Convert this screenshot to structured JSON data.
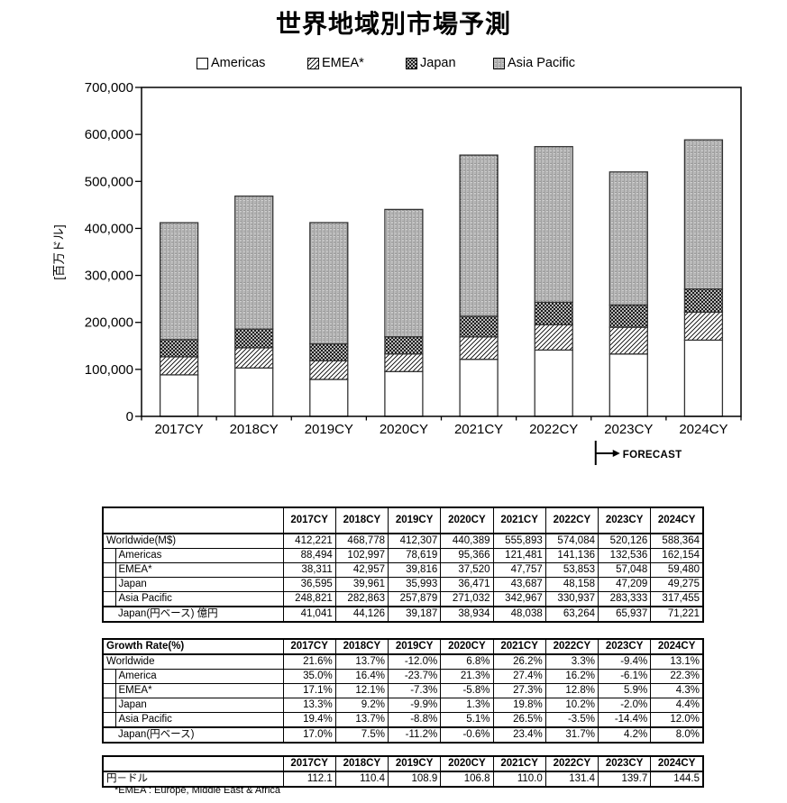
{
  "page": {
    "title": "世界地域別市場予測",
    "footnote": "*EMEA : Europe, Middle East & Africa"
  },
  "colors": {
    "ink": "#000000",
    "bar_border": "#333333",
    "pattern_gray": "#a0a0a0"
  },
  "chart_data": {
    "type": "bar",
    "subtype": "stacked",
    "title": "世界地域別市場予測",
    "ylabel": "[百万ドル]",
    "ylim": [
      0,
      700000
    ],
    "ytick_step": 100000,
    "yticks": [
      "0",
      "100,000",
      "200,000",
      "300,000",
      "400,000",
      "500,000",
      "600,000",
      "700,000"
    ],
    "grid": "off",
    "legend_position": "top",
    "categories": [
      "2017CY",
      "2018CY",
      "2019CY",
      "2020CY",
      "2021CY",
      "2022CY",
      "2023CY",
      "2024CY"
    ],
    "series": [
      {
        "name": "Americas",
        "pattern": "plain-white",
        "values": [
          88494,
          102997,
          78619,
          95366,
          121481,
          141136,
          132536,
          162154
        ]
      },
      {
        "name": "EMEA*",
        "pattern": "diagonal-hatch",
        "values": [
          38311,
          42957,
          39816,
          37520,
          47757,
          53853,
          57048,
          59480
        ]
      },
      {
        "name": "Japan",
        "pattern": "dark-checker",
        "values": [
          36595,
          39961,
          35993,
          36471,
          43687,
          48158,
          47209,
          49275
        ]
      },
      {
        "name": "Asia Pacific",
        "pattern": "dotted-vertical",
        "values": [
          248821,
          282863,
          257879,
          271032,
          342967,
          330937,
          283333,
          317455
        ]
      }
    ],
    "totals": [
      412221,
      468778,
      412307,
      440389,
      555893,
      574084,
      520126,
      588364
    ],
    "forecast_label": "FORECAST",
    "forecast_from_index": 6
  },
  "tables": {
    "years": [
      "2017CY",
      "2018CY",
      "2019CY",
      "2020CY",
      "2021CY",
      "2022CY",
      "2023CY",
      "2024CY"
    ],
    "market": {
      "header_label": "",
      "rows": [
        {
          "label": "Worldwide(M$)",
          "indent": false,
          "values": [
            "412,221",
            "468,778",
            "412,307",
            "440,389",
            "555,893",
            "574,084",
            "520,126",
            "588,364"
          ]
        },
        {
          "label": "Americas",
          "indent": true,
          "values": [
            "88,494",
            "102,997",
            "78,619",
            "95,366",
            "121,481",
            "141,136",
            "132,536",
            "162,154"
          ]
        },
        {
          "label": "EMEA*",
          "indent": true,
          "values": [
            "38,311",
            "42,957",
            "39,816",
            "37,520",
            "47,757",
            "53,853",
            "57,048",
            "59,480"
          ]
        },
        {
          "label": "Japan",
          "indent": true,
          "values": [
            "36,595",
            "39,961",
            "35,993",
            "36,471",
            "43,687",
            "48,158",
            "47,209",
            "49,275"
          ]
        },
        {
          "label": "Asia Pacific",
          "indent": true,
          "values": [
            "248,821",
            "282,863",
            "257,879",
            "271,032",
            "342,967",
            "330,937",
            "283,333",
            "317,455"
          ]
        }
      ],
      "bottom_rows": [
        {
          "label": "Japan(円ベース) 億円",
          "values": [
            "41,041",
            "44,126",
            "39,187",
            "38,934",
            "48,038",
            "63,264",
            "65,937",
            "71,221"
          ]
        }
      ]
    },
    "growth": {
      "header_label": "Growth Rate(%)",
      "rows": [
        {
          "label": "Worldwide",
          "indent": false,
          "values": [
            "21.6%",
            "13.7%",
            "-12.0%",
            "6.8%",
            "26.2%",
            "3.3%",
            "-9.4%",
            "13.1%"
          ]
        },
        {
          "label": "America",
          "indent": true,
          "values": [
            "35.0%",
            "16.4%",
            "-23.7%",
            "21.3%",
            "27.4%",
            "16.2%",
            "-6.1%",
            "22.3%"
          ]
        },
        {
          "label": "EMEA*",
          "indent": true,
          "values": [
            "17.1%",
            "12.1%",
            "-7.3%",
            "-5.8%",
            "27.3%",
            "12.8%",
            "5.9%",
            "4.3%"
          ]
        },
        {
          "label": "Japan",
          "indent": true,
          "values": [
            "13.3%",
            "9.2%",
            "-9.9%",
            "1.3%",
            "19.8%",
            "10.2%",
            "-2.0%",
            "4.4%"
          ]
        },
        {
          "label": "Asia Pacific",
          "indent": true,
          "values": [
            "19.4%",
            "13.7%",
            "-8.8%",
            "5.1%",
            "26.5%",
            "-3.5%",
            "-14.4%",
            "12.0%"
          ]
        }
      ],
      "bottom_rows": [
        {
          "label": "Japan(円ベース)",
          "values": [
            "17.0%",
            "7.5%",
            "-11.2%",
            "-0.6%",
            "23.4%",
            "31.7%",
            "4.2%",
            "8.0%"
          ]
        }
      ]
    },
    "fx": {
      "header_label": "",
      "rows": [
        {
          "label": "円－ドル",
          "indent": false,
          "values": [
            "112.1",
            "110.4",
            "108.9",
            "106.8",
            "110.0",
            "131.4",
            "139.7",
            "144.5"
          ]
        }
      ],
      "bottom_rows": []
    }
  }
}
